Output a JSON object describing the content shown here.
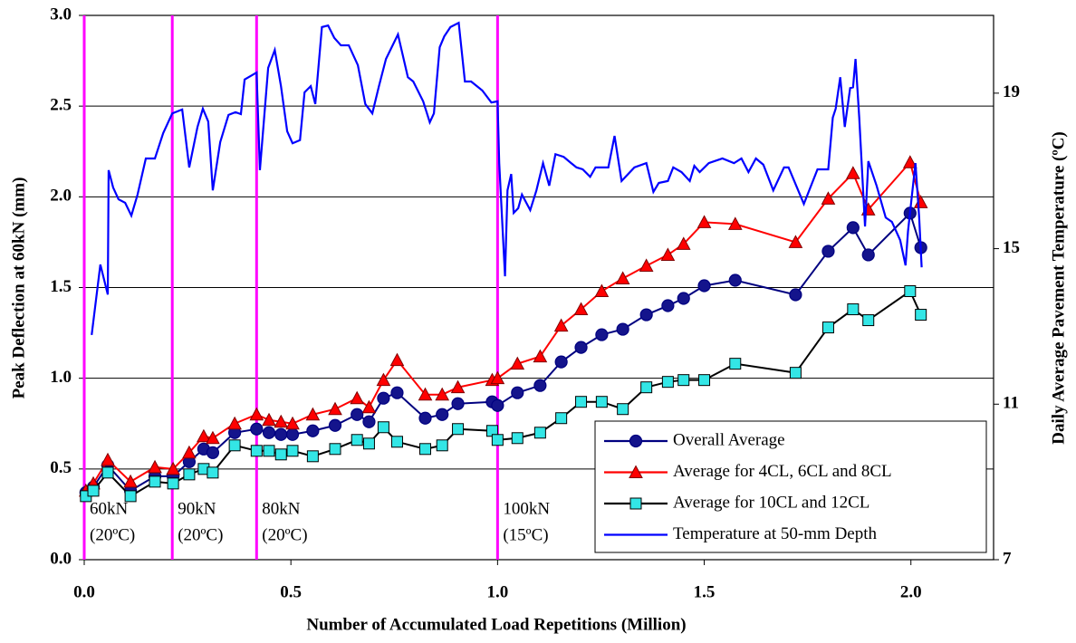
{
  "chart_data": {
    "type": "line",
    "xlabel": "Number of Accumulated Load Repetitions (Million)",
    "ylabel": "Peak Deflection at 60kN (mm)",
    "y2label": "Daily Average Pavement Temperature (ºC)",
    "xlim": [
      0,
      2.2
    ],
    "xticks": [
      {
        "value": 0,
        "label": "0.0"
      },
      0.5,
      {
        "value": 1,
        "label": "1.0"
      },
      1.5,
      {
        "value": 2,
        "label": "2.0"
      }
    ],
    "ylim": [
      0,
      3
    ],
    "yticks": [
      {
        "value": 0,
        "label": "0.0"
      },
      0.5,
      {
        "value": 1,
        "label": "1.0"
      },
      1.5,
      {
        "value": 2,
        "label": "2.0"
      },
      2.5,
      {
        "value": 3,
        "label": "3.0"
      }
    ],
    "y2lim": [
      7,
      21
    ],
    "y2ticks": [
      7,
      11,
      15,
      19
    ],
    "grid": true,
    "legend": "lower right",
    "vlines": [
      0,
      0.213,
      0.417,
      1.0
    ],
    "vline_color": "#ff00ff",
    "annotations": [
      [
        "60kN",
        "(20ºC)"
      ],
      [
        "90kN",
        "(20ºC)"
      ],
      [
        "80kN",
        "(20ºC)"
      ],
      [
        "100kN",
        "(15ºC)"
      ]
    ],
    "series": [
      {
        "name": "Overall Average",
        "color": "#000080",
        "marker": "circle",
        "marker_fill": "#14148c",
        "x": [
          0.004,
          0.022,
          0.057,
          0.112,
          0.171,
          0.215,
          0.254,
          0.289,
          0.311,
          0.364,
          0.417,
          0.447,
          0.476,
          0.504,
          0.553,
          0.607,
          0.66,
          0.689,
          0.724,
          0.757,
          0.825,
          0.866,
          0.904,
          0.987,
          1.0,
          1.048,
          1.103,
          1.154,
          1.202,
          1.252,
          1.303,
          1.36,
          1.412,
          1.45,
          1.5,
          1.575,
          1.721,
          1.8,
          1.86,
          1.897,
          1.998,
          2.024
        ],
        "values": [
          0.37,
          0.4,
          0.52,
          0.38,
          0.46,
          0.46,
          0.54,
          0.61,
          0.59,
          0.7,
          0.72,
          0.7,
          0.69,
          0.69,
          0.71,
          0.74,
          0.8,
          0.76,
          0.89,
          0.92,
          0.78,
          0.8,
          0.86,
          0.87,
          0.85,
          0.92,
          0.96,
          1.09,
          1.17,
          1.24,
          1.27,
          1.35,
          1.4,
          1.44,
          1.51,
          1.54,
          1.46,
          1.7,
          1.83,
          1.68,
          1.91,
          1.72
        ]
      },
      {
        "name": "Average for 4CL, 6CL and 8CL",
        "color": "#ff0000",
        "marker": "triangle",
        "marker_fill": "#ff0000",
        "x": [
          0.004,
          0.022,
          0.057,
          0.112,
          0.171,
          0.215,
          0.254,
          0.289,
          0.311,
          0.364,
          0.417,
          0.447,
          0.476,
          0.504,
          0.553,
          0.607,
          0.66,
          0.689,
          0.724,
          0.757,
          0.825,
          0.866,
          0.904,
          0.987,
          1.0,
          1.048,
          1.103,
          1.154,
          1.202,
          1.252,
          1.303,
          1.36,
          1.412,
          1.45,
          1.5,
          1.575,
          1.721,
          1.8,
          1.86,
          1.897,
          1.998,
          2.024
        ],
        "values": [
          0.38,
          0.42,
          0.55,
          0.43,
          0.51,
          0.5,
          0.59,
          0.68,
          0.67,
          0.75,
          0.8,
          0.77,
          0.76,
          0.75,
          0.8,
          0.83,
          0.89,
          0.84,
          0.99,
          1.1,
          0.91,
          0.91,
          0.95,
          0.99,
          1.0,
          1.08,
          1.12,
          1.29,
          1.38,
          1.48,
          1.55,
          1.62,
          1.68,
          1.74,
          1.86,
          1.85,
          1.75,
          1.99,
          2.13,
          1.93,
          2.19,
          1.97
        ]
      },
      {
        "name": "Average for 10CL and 12CL",
        "color": "#000000",
        "marker": "square",
        "marker_fill": "#33e6e6",
        "x": [
          0.004,
          0.022,
          0.057,
          0.112,
          0.171,
          0.215,
          0.254,
          0.289,
          0.311,
          0.364,
          0.417,
          0.447,
          0.476,
          0.504,
          0.553,
          0.607,
          0.66,
          0.689,
          0.724,
          0.757,
          0.825,
          0.866,
          0.904,
          0.987,
          1.0,
          1.048,
          1.103,
          1.154,
          1.202,
          1.252,
          1.303,
          1.36,
          1.412,
          1.45,
          1.5,
          1.575,
          1.721,
          1.8,
          1.86,
          1.897,
          1.998,
          2.024
        ],
        "values": [
          0.35,
          0.38,
          0.48,
          0.35,
          0.43,
          0.42,
          0.47,
          0.5,
          0.48,
          0.63,
          0.6,
          0.6,
          0.58,
          0.6,
          0.57,
          0.61,
          0.66,
          0.64,
          0.73,
          0.65,
          0.61,
          0.63,
          0.72,
          0.71,
          0.66,
          0.67,
          0.7,
          0.78,
          0.87,
          0.87,
          0.83,
          0.95,
          0.98,
          0.99,
          0.99,
          1.08,
          1.03,
          1.28,
          1.38,
          1.32,
          1.48,
          1.35
        ]
      },
      {
        "name": "Temperature at 50-mm Depth",
        "color": "#0000ff",
        "marker": "none",
        "axis": "y2",
        "x": [
          0.018,
          0.039,
          0.057,
          0.059,
          0.07,
          0.083,
          0.099,
          0.114,
          0.129,
          0.149,
          0.171,
          0.191,
          0.213,
          0.237,
          0.254,
          0.274,
          0.287,
          0.3,
          0.311,
          0.329,
          0.349,
          0.366,
          0.379,
          0.388,
          0.417,
          0.425,
          0.445,
          0.461,
          0.476,
          0.491,
          0.504,
          0.522,
          0.533,
          0.548,
          0.559,
          0.575,
          0.59,
          0.605,
          0.621,
          0.64,
          0.662,
          0.68,
          0.697,
          0.713,
          0.73,
          0.759,
          0.783,
          0.796,
          0.82,
          0.836,
          0.846,
          0.86,
          0.871,
          0.886,
          0.906,
          0.921,
          0.936,
          0.963,
          0.985,
          1.0,
          1.004,
          1.018,
          1.024,
          1.033,
          1.039,
          1.05,
          1.059,
          1.079,
          1.094,
          1.11,
          1.125,
          1.14,
          1.16,
          1.178,
          1.191,
          1.206,
          1.224,
          1.237,
          1.268,
          1.283,
          1.3,
          1.331,
          1.36,
          1.377,
          1.39,
          1.412,
          1.425,
          1.445,
          1.465,
          1.476,
          1.489,
          1.511,
          1.544,
          1.572,
          1.59,
          1.607,
          1.625,
          1.643,
          1.667,
          1.693,
          1.704,
          1.741,
          1.774,
          1.8,
          1.811,
          1.818,
          1.829,
          1.84,
          1.853,
          1.86,
          1.866,
          1.875,
          1.889,
          1.897,
          1.917,
          1.939,
          1.954,
          1.974,
          1.987,
          1.993,
          2.011,
          2.02,
          2.026
        ],
        "values": [
          12.78,
          14.59,
          13.82,
          17.02,
          16.57,
          16.27,
          16.18,
          15.85,
          16.39,
          17.32,
          17.32,
          17.97,
          18.48,
          18.58,
          17.09,
          18.13,
          18.6,
          18.27,
          16.5,
          17.74,
          18.44,
          18.51,
          18.46,
          19.35,
          19.53,
          17.02,
          19.65,
          20.11,
          19.18,
          18.02,
          17.71,
          17.79,
          19.02,
          19.18,
          18.72,
          20.7,
          20.74,
          20.42,
          20.23,
          20.23,
          19.72,
          18.72,
          18.48,
          19.18,
          19.88,
          20.51,
          19.41,
          19.3,
          18.79,
          18.25,
          18.48,
          20.18,
          20.46,
          20.7,
          20.81,
          19.3,
          19.3,
          19.07,
          18.76,
          18.79,
          17.2,
          14.29,
          16.5,
          16.92,
          15.92,
          16.04,
          16.39,
          15.99,
          16.5,
          17.2,
          16.62,
          17.43,
          17.36,
          17.2,
          17.09,
          17.04,
          16.85,
          17.09,
          17.09,
          17.9,
          16.74,
          17.09,
          17.2,
          16.46,
          16.69,
          16.74,
          17.09,
          16.97,
          16.74,
          17.13,
          16.97,
          17.2,
          17.32,
          17.2,
          17.32,
          16.97,
          17.32,
          17.16,
          16.5,
          17.09,
          17.09,
          16.15,
          17.04,
          17.04,
          18.37,
          18.6,
          19.41,
          18.13,
          19.13,
          19.15,
          19.88,
          18.37,
          15.57,
          17.25,
          16.62,
          15.8,
          15.69,
          15.22,
          14.57,
          15.45,
          17.2,
          15.8,
          14.52
        ]
      }
    ]
  }
}
